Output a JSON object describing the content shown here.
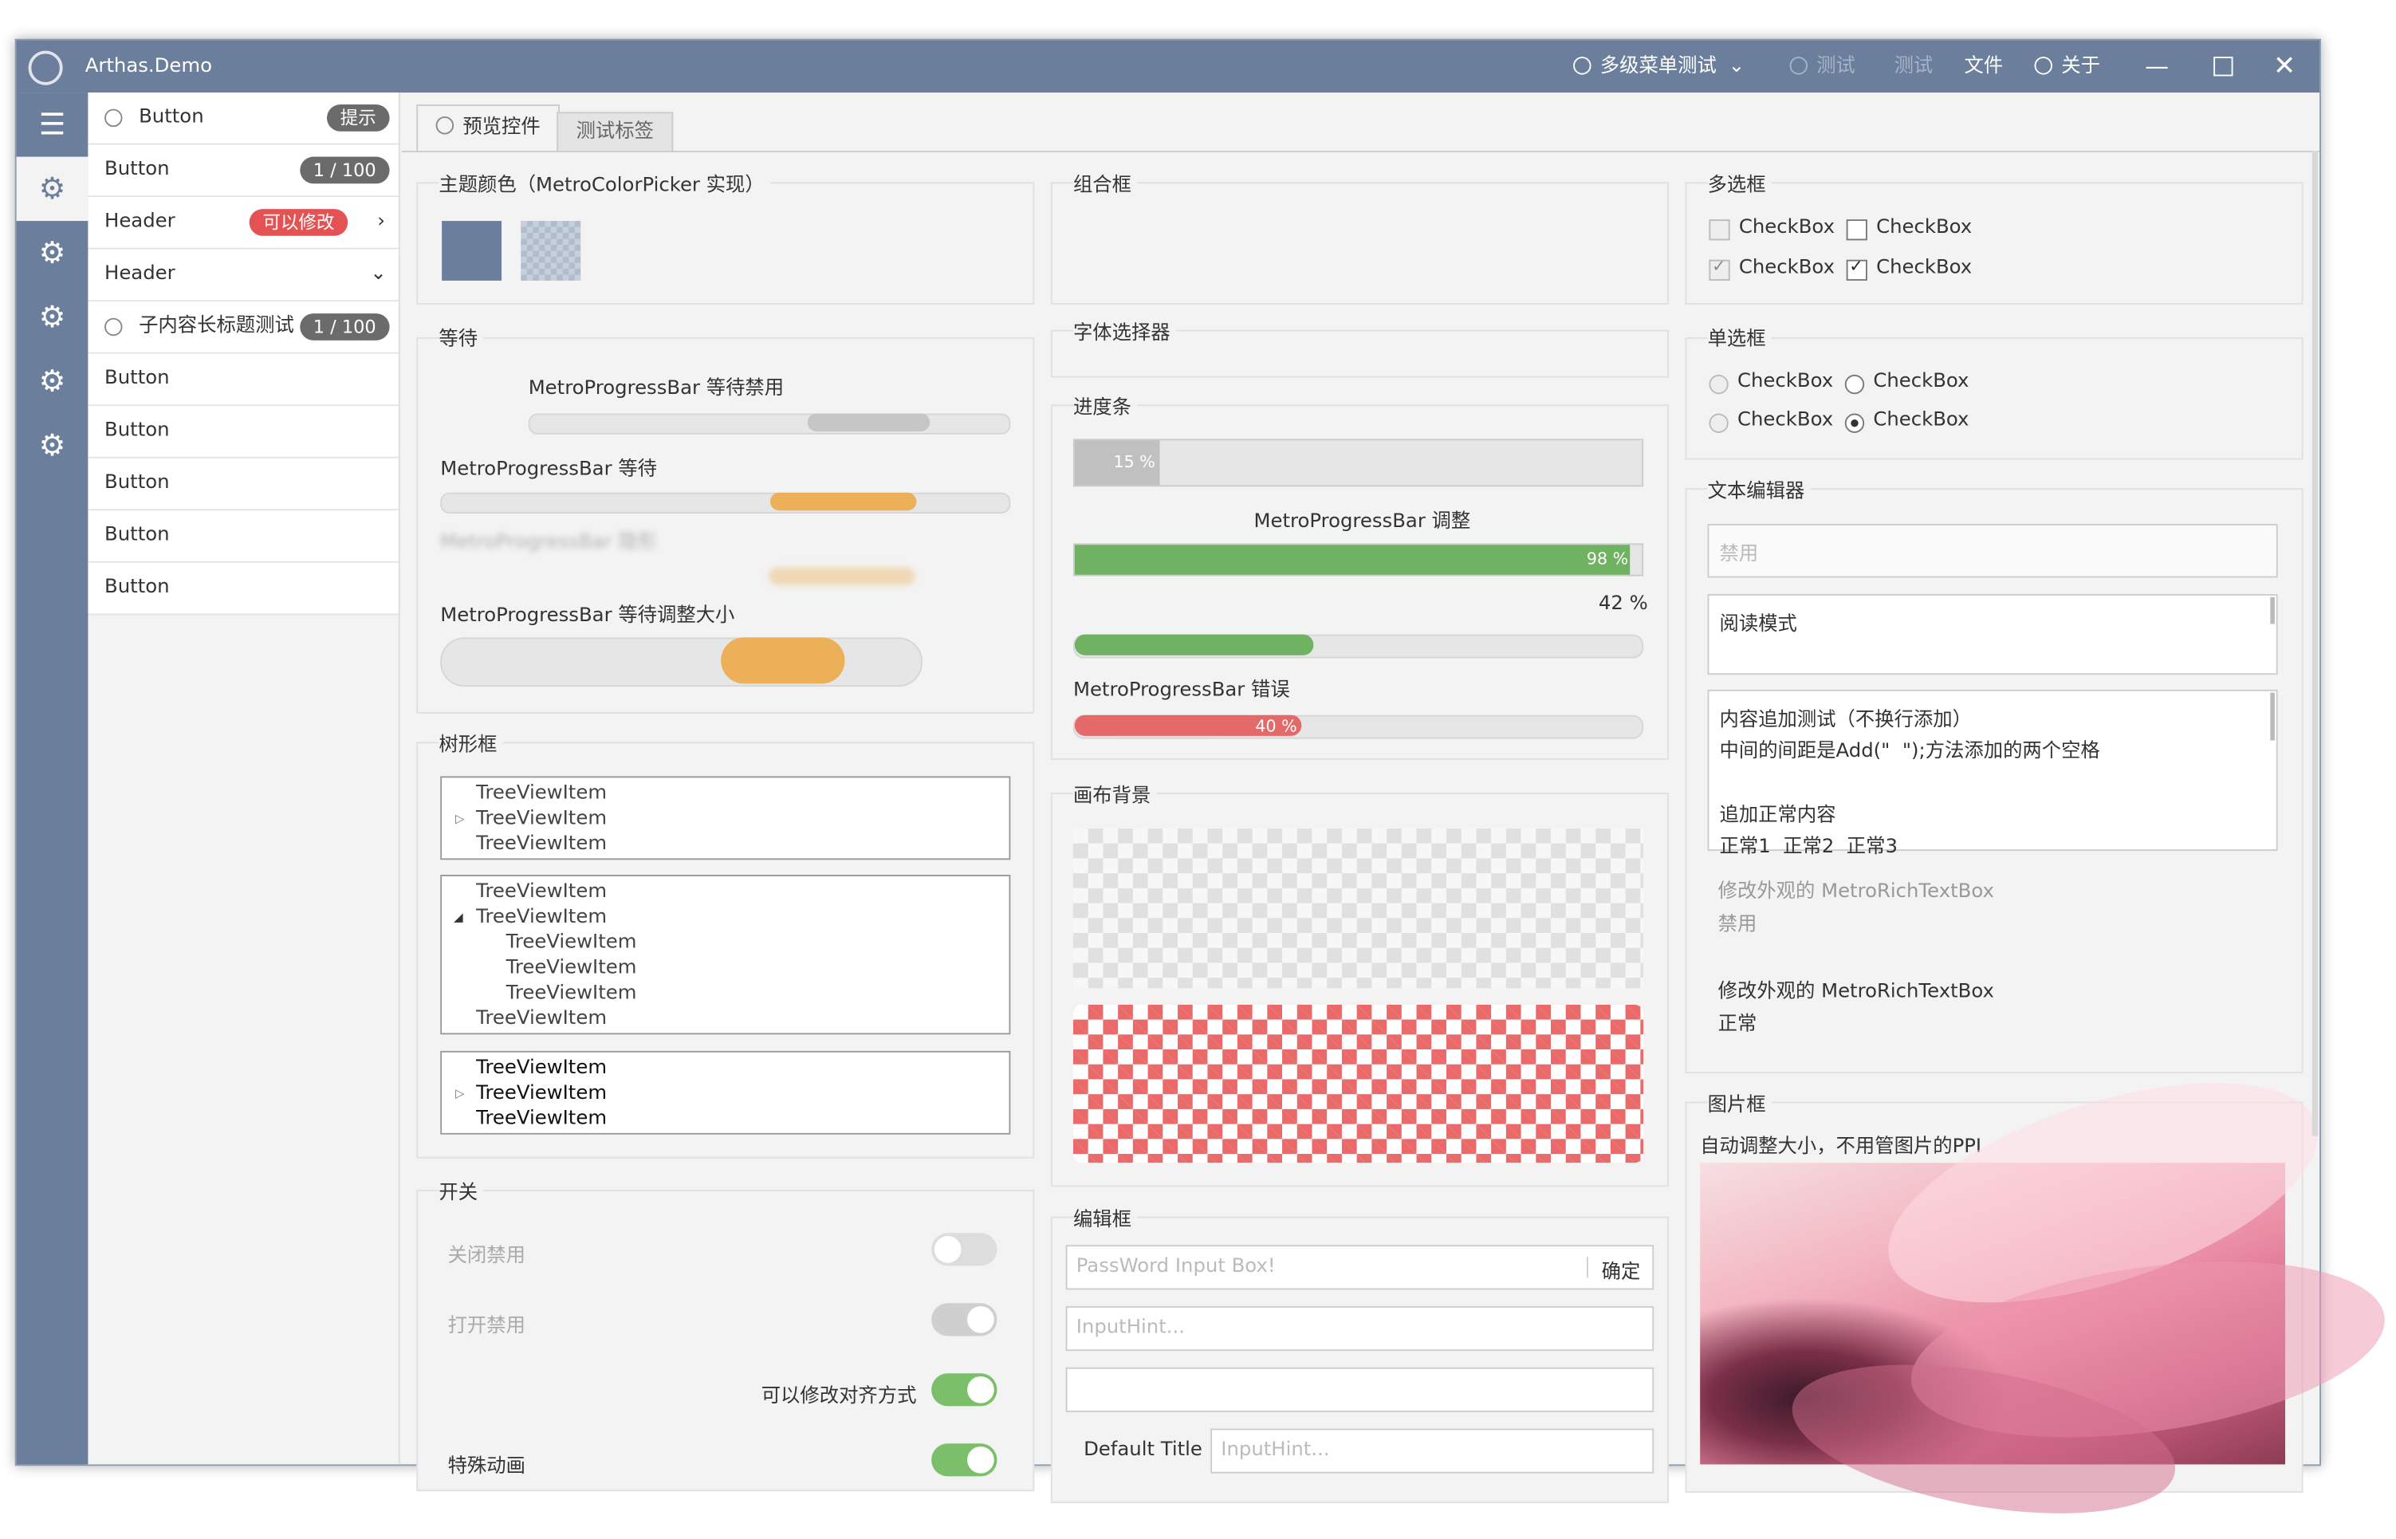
{
  "window": {
    "title": "Arthas.Demo"
  },
  "titlebar": {
    "menu1": "多级菜单测试",
    "test1": "测试",
    "test2": "测试",
    "file": "文件",
    "about": "关于"
  },
  "nav": {
    "items": [
      {
        "label": "Button",
        "badge": "提示"
      },
      {
        "label": "Button",
        "badge": "1 / 100"
      },
      {
        "label": "Header",
        "badge": "可以修改"
      },
      {
        "label": "Header"
      },
      {
        "label": "子内容长标题测试",
        "badge": "1 / 100"
      },
      {
        "label": "Button"
      },
      {
        "label": "Button"
      },
      {
        "label": "Button"
      },
      {
        "label": "Button"
      },
      {
        "label": "Button"
      }
    ]
  },
  "tabs": [
    "预览控件",
    "测试标签"
  ],
  "theme": {
    "title": "主题颜色（MetroColorPicker 实现）",
    "color1": "#6b7f9d"
  },
  "wait": {
    "title": "等待",
    "disabled_label": "MetroProgressBar 等待禁用",
    "wait_label": "MetroProgressBar 等待",
    "hidden_label": "MetroProgressBar 隐形",
    "resize_label": "MetroProgressBar 等待调整大小"
  },
  "tree": {
    "title": "树形框",
    "item": "TreeViewItem"
  },
  "switch": {
    "title": "开关",
    "off_disabled": "关闭禁用",
    "on_disabled": "打开禁用",
    "align": "可以修改对齐方式",
    "anim": "特殊动画"
  },
  "combo": {
    "title": "组合框"
  },
  "font": {
    "title": "字体选择器"
  },
  "progress": {
    "title": "进度条",
    "p1_text": "15 %",
    "adjust_label": "MetroProgressBar 调整",
    "p2_text": "98 %",
    "p3_text": "42 %",
    "error_label": "MetroProgressBar 错误",
    "p4_text": "40 %",
    "values": {
      "p1": 0.15,
      "p2": 0.98,
      "p3": 0.42,
      "p4": 0.4
    }
  },
  "canvas": {
    "title": "画布背景"
  },
  "editbox": {
    "title": "编辑框",
    "pwd_placeholder": "PassWord Input Box!",
    "ok": "确定",
    "hint": "InputHint...",
    "default_title": "Default Title",
    "hint2": "InputHint..."
  },
  "checkbox": {
    "title": "多选框",
    "label": "CheckBox"
  },
  "radio": {
    "title": "单选框",
    "label": "CheckBox"
  },
  "texteditor": {
    "title": "文本编辑器",
    "disabled": "禁用",
    "readonly": "阅读模式",
    "line1": "内容追加测试（不换行添加）",
    "line2": "中间的间距是Add(\"  \");方法添加的两个空格",
    "line3": "追加正常内容",
    "line4": "正常1  正常2  正常3",
    "rich1": "修改外观的 MetroRichTextBox",
    "rich1_sub": "禁用",
    "rich2": "修改外观的 MetroRichTextBox",
    "rich2_sub": "正常"
  },
  "image": {
    "title": "图片框",
    "caption": "自动调整大小，不用管图片的PPI"
  }
}
